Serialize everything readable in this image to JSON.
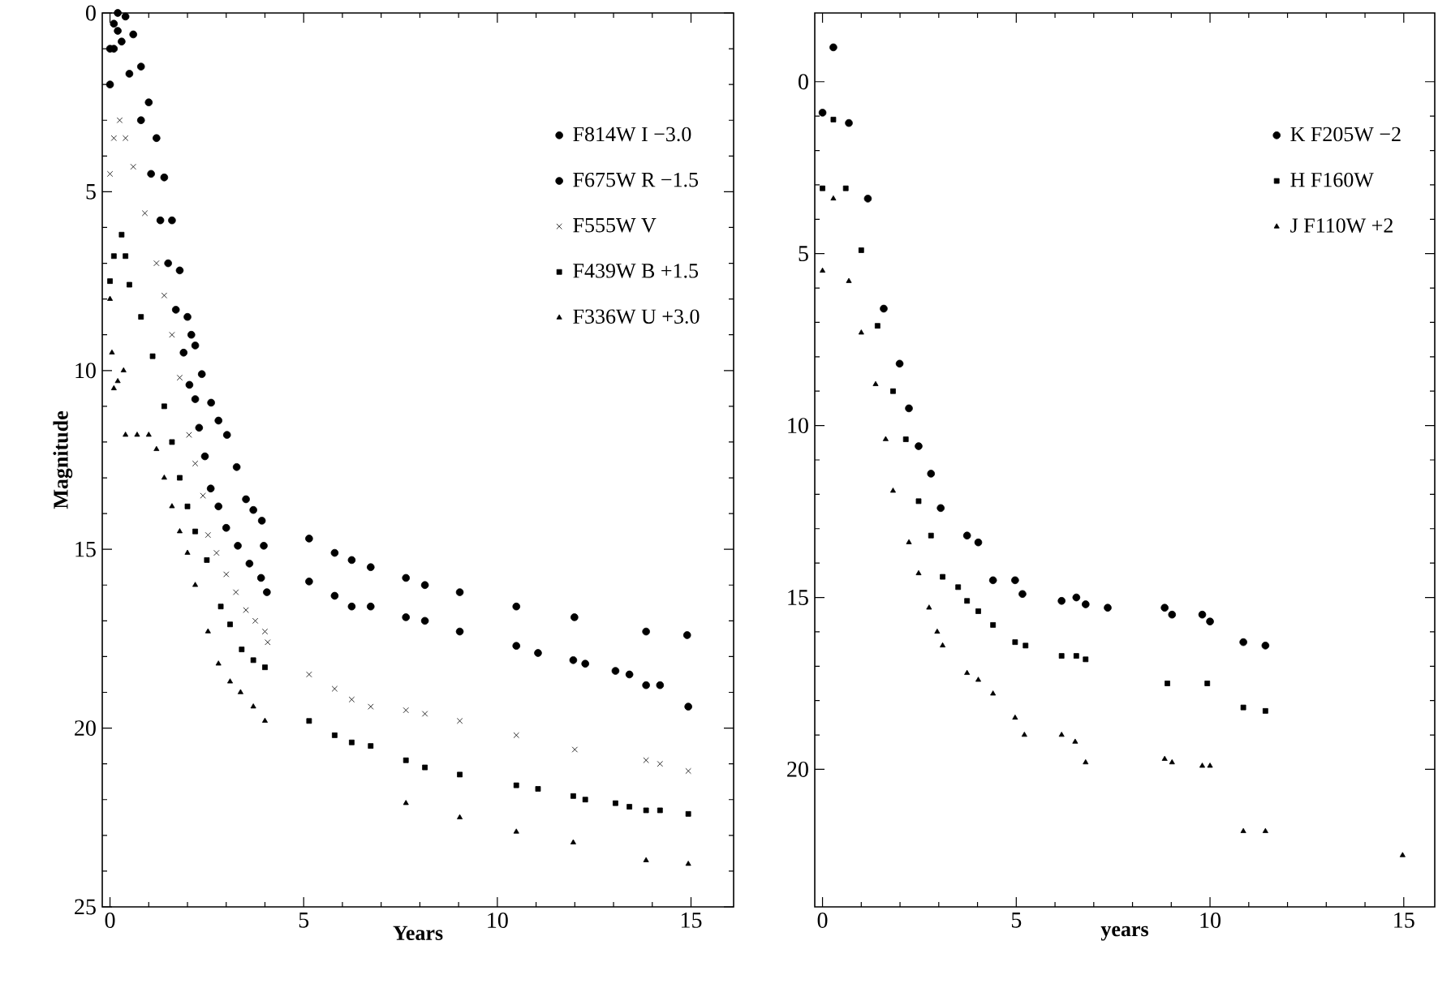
{
  "chart_data": [
    {
      "type": "scatter",
      "xlabel": "Years",
      "ylabel": "Magnitude",
      "xlim": [
        -0.2,
        16.1
      ],
      "ylim": [
        25,
        0
      ],
      "xticks": [
        0,
        5,
        10,
        15
      ],
      "yticks": [
        0,
        5,
        10,
        15,
        20,
        25
      ],
      "legend": "top right",
      "series": [
        {
          "name": "F814W  I −3.0",
          "color": "#000000",
          "marker": "circle",
          "x": [
            0.0,
            0.1,
            0.2,
            0.4,
            0.6,
            0.8,
            1.0,
            1.2,
            1.4,
            1.6,
            1.8,
            2.0,
            2.1,
            2.2,
            2.37,
            2.61,
            2.8,
            3.02,
            3.27,
            3.51,
            3.7,
            3.92,
            3.97,
            5.14,
            5.8,
            6.24,
            6.73,
            7.64,
            8.13,
            9.03,
            10.49,
            11.99,
            13.84,
            14.9
          ],
          "values": [
            1.0,
            0.3,
            0.0,
            0.1,
            0.6,
            1.5,
            2.5,
            3.5,
            4.6,
            5.8,
            7.2,
            8.5,
            9.0,
            9.3,
            10.1,
            10.9,
            11.4,
            11.8,
            12.7,
            13.6,
            13.9,
            14.2,
            14.9,
            14.7,
            15.1,
            15.3,
            15.5,
            15.8,
            16.0,
            16.2,
            16.6,
            16.9,
            17.3,
            17.4
          ]
        },
        {
          "name": "F675W  R −1.5",
          "color": "#000000",
          "marker": "circle",
          "x": [
            0.0,
            0.1,
            0.2,
            0.3,
            0.5,
            0.8,
            1.06,
            1.3,
            1.5,
            1.7,
            1.9,
            2.05,
            2.2,
            2.3,
            2.45,
            2.6,
            2.8,
            3.0,
            3.3,
            3.6,
            3.9,
            4.05,
            5.14,
            5.8,
            6.24,
            6.73,
            7.64,
            8.13,
            9.03,
            10.49,
            11.05,
            11.96,
            12.27,
            13.05,
            13.41,
            13.84,
            14.2,
            14.93
          ],
          "values": [
            2.0,
            1.0,
            0.5,
            0.8,
            1.7,
            3.0,
            4.5,
            5.8,
            7.0,
            8.3,
            9.5,
            10.4,
            10.8,
            11.6,
            12.4,
            13.3,
            13.8,
            14.4,
            14.9,
            15.4,
            15.8,
            16.2,
            15.9,
            16.3,
            16.6,
            16.6,
            16.9,
            17.0,
            17.3,
            17.7,
            17.9,
            18.1,
            18.2,
            18.4,
            18.5,
            18.8,
            18.8,
            19.4
          ]
        },
        {
          "name": "F555W  V",
          "color": "#000000",
          "marker": "cross",
          "x": [
            0.0,
            0.1,
            0.25,
            0.4,
            0.6,
            0.9,
            1.2,
            1.4,
            1.6,
            1.8,
            2.04,
            2.2,
            2.4,
            2.53,
            2.75,
            3.0,
            3.25,
            3.51,
            3.75,
            4.0,
            4.07,
            5.14,
            5.8,
            6.24,
            6.73,
            7.64,
            8.13,
            9.03,
            10.49,
            12.0,
            13.84,
            14.2,
            14.93
          ],
          "values": [
            4.5,
            3.5,
            3.0,
            3.5,
            4.3,
            5.6,
            7.0,
            7.9,
            9.0,
            10.2,
            11.8,
            12.6,
            13.5,
            14.6,
            15.1,
            15.7,
            16.2,
            16.7,
            17.0,
            17.3,
            17.6,
            18.5,
            18.9,
            19.2,
            19.4,
            19.5,
            19.6,
            19.8,
            20.2,
            20.6,
            20.9,
            21.0,
            21.2
          ]
        },
        {
          "name": "F439W  B +1.5",
          "color": "#000000",
          "marker": "square",
          "x": [
            0.0,
            0.1,
            0.3,
            0.4,
            0.5,
            0.8,
            1.1,
            1.4,
            1.6,
            1.8,
            2.0,
            2.2,
            2.5,
            2.86,
            3.1,
            3.4,
            3.7,
            4.0,
            5.14,
            5.8,
            6.24,
            6.73,
            7.64,
            8.13,
            9.03,
            10.49,
            11.05,
            11.96,
            12.27,
            13.05,
            13.41,
            13.84,
            14.2,
            14.93
          ],
          "values": [
            7.5,
            6.8,
            6.2,
            6.8,
            7.6,
            8.5,
            9.6,
            11.0,
            12.0,
            13.0,
            13.8,
            14.5,
            15.3,
            16.6,
            17.1,
            17.8,
            18.1,
            18.3,
            19.8,
            20.2,
            20.4,
            20.5,
            20.9,
            21.1,
            21.3,
            21.6,
            21.7,
            21.9,
            22.0,
            22.1,
            22.2,
            22.3,
            22.3,
            22.4
          ]
        },
        {
          "name": "F336W  U +3.0",
          "color": "#000000",
          "marker": "triangle",
          "x": [
            0.0,
            0.05,
            0.1,
            0.2,
            0.35,
            0.4,
            0.7,
            1.0,
            1.2,
            1.4,
            1.6,
            1.8,
            2.0,
            2.2,
            2.53,
            2.8,
            3.1,
            3.37,
            3.7,
            4.0,
            7.64,
            9.03,
            10.49,
            11.96,
            13.84,
            14.93
          ],
          "values": [
            8.0,
            9.5,
            10.5,
            10.3,
            10.0,
            11.8,
            11.8,
            11.8,
            12.2,
            13.0,
            13.8,
            14.5,
            15.1,
            16.0,
            17.3,
            18.2,
            18.7,
            19.0,
            19.4,
            19.8,
            22.1,
            22.5,
            22.9,
            23.2,
            23.7,
            23.8
          ]
        }
      ]
    },
    {
      "type": "scatter",
      "xlabel": "years",
      "xlim": [
        -0.2,
        15.8
      ],
      "ylim": [
        24,
        -2
      ],
      "xticks": [
        0,
        5,
        10,
        15
      ],
      "yticks": [
        0,
        5,
        10,
        15,
        20
      ],
      "legend": "top right",
      "series": [
        {
          "name": "K  F205W −2",
          "color": "#000000",
          "marker": "circle",
          "x": [
            0.0,
            0.28,
            0.68,
            1.17,
            1.58,
            1.99,
            2.23,
            2.48,
            2.8,
            3.05,
            3.73,
            4.02,
            4.4,
            4.97,
            5.16,
            6.17,
            6.55,
            6.79,
            7.36,
            8.83,
            9.02,
            9.8,
            10.0,
            10.86,
            11.43
          ],
          "values": [
            0.9,
            -1.0,
            1.2,
            3.4,
            6.6,
            8.2,
            9.5,
            10.6,
            11.4,
            12.4,
            13.2,
            13.4,
            14.5,
            14.5,
            14.9,
            15.1,
            15.0,
            15.2,
            15.3,
            15.3,
            15.5,
            15.5,
            15.7,
            16.3,
            16.4
          ]
        },
        {
          "name": "H  F160W",
          "color": "#000000",
          "marker": "square",
          "x": [
            0.0,
            0.28,
            0.6,
            1.0,
            1.42,
            1.82,
            2.15,
            2.48,
            2.8,
            3.1,
            3.5,
            3.73,
            4.02,
            4.4,
            4.97,
            5.24,
            6.17,
            6.55,
            6.79,
            8.9,
            9.93,
            10.86,
            11.43
          ],
          "values": [
            3.1,
            1.1,
            3.1,
            4.9,
            7.1,
            9.0,
            10.4,
            12.2,
            13.2,
            14.4,
            14.7,
            15.1,
            15.4,
            15.8,
            16.3,
            16.4,
            16.7,
            16.7,
            16.8,
            17.5,
            17.5,
            18.2,
            18.3
          ]
        },
        {
          "name": "J  F110W +2",
          "color": "#000000",
          "marker": "triangle",
          "x": [
            0.0,
            0.28,
            0.68,
            1.0,
            1.37,
            1.63,
            1.82,
            2.23,
            2.48,
            2.75,
            2.96,
            3.1,
            3.73,
            4.02,
            4.4,
            4.97,
            5.21,
            6.17,
            6.52,
            6.79,
            8.83,
            9.02,
            9.8,
            10.0,
            10.86,
            11.43,
            14.97
          ],
          "values": [
            5.5,
            3.4,
            5.8,
            7.3,
            8.8,
            10.4,
            11.9,
            13.4,
            14.3,
            15.3,
            16.0,
            16.4,
            17.2,
            17.4,
            17.8,
            18.5,
            19.0,
            19.0,
            19.2,
            19.8,
            19.7,
            19.8,
            19.9,
            19.9,
            21.8,
            21.8,
            22.5
          ]
        }
      ]
    }
  ]
}
